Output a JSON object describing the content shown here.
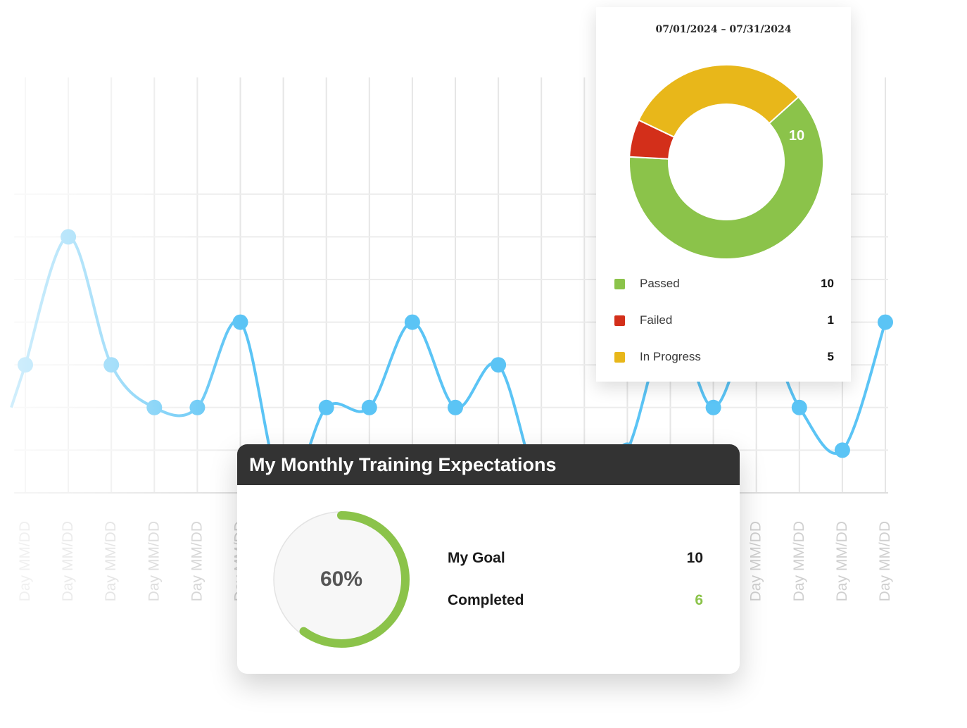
{
  "chart_data": {
    "type": "line",
    "x": [
      "Day MM/DD",
      "Day MM/DD",
      "Day MM/DD",
      "Day MM/DD",
      "Day MM/DD",
      "Day MM/DD",
      "Day MM/DD",
      "Day MM/DD",
      "Day MM/DD",
      "Day MM/DD",
      "Day MM/DD",
      "Day MM/DD",
      "Day MM/DD",
      "Day MM/DD",
      "Day MM/DD",
      "Day MM/DD",
      "Day MM/DD",
      "Day MM/DD",
      "Day MM/DD",
      "Day MM/DD",
      "Day MM/DD"
    ],
    "series": [
      {
        "values": [
          3,
          6,
          3,
          2,
          2,
          4,
          0,
          2,
          2,
          4,
          2,
          3,
          0,
          0,
          1,
          4,
          2,
          4,
          2,
          1,
          4
        ]
      }
    ],
    "ylim": [
      0,
      7
    ],
    "grid": true,
    "line_color": "#5bc4f5"
  },
  "donut": {
    "date_start": "07/01/2024",
    "date_sep": "–",
    "date_end": "07/31/2024",
    "center_label": "10",
    "items": [
      {
        "label": "Passed",
        "value": "10",
        "color": "#8bc34a"
      },
      {
        "label": "Failed",
        "value": "1",
        "color": "#d32f1a"
      },
      {
        "label": "In Progress",
        "value": "5",
        "color": "#e8b71a"
      }
    ]
  },
  "goal_card": {
    "title": "My Monthly Training Expectations",
    "percent_label": "60%",
    "progress": 0.6,
    "goal_label": "My Goal",
    "goal_value": "10",
    "completed_label": "Completed",
    "completed_value": "6",
    "ring_color": "#8bc34a"
  }
}
